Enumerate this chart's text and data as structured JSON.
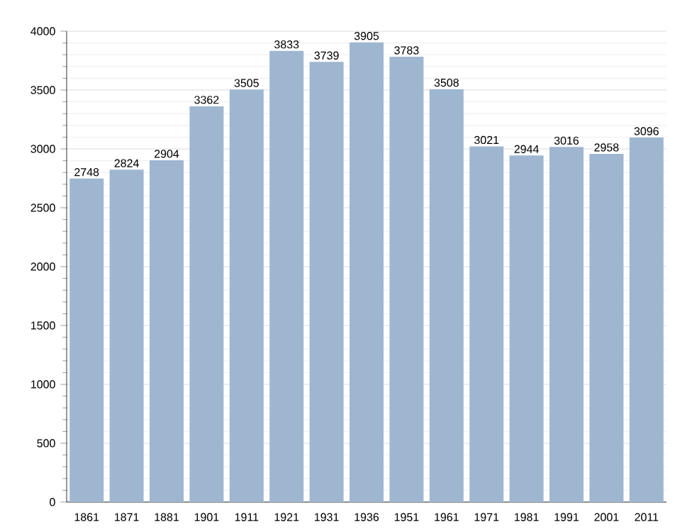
{
  "chart_data": {
    "type": "bar",
    "categories": [
      "1861",
      "1871",
      "1881",
      "1901",
      "1911",
      "1921",
      "1931",
      "1936",
      "1951",
      "1961",
      "1971",
      "1981",
      "1991",
      "2001",
      "2011"
    ],
    "values": [
      2748,
      2824,
      2904,
      3362,
      3505,
      3833,
      3739,
      3905,
      3783,
      3508,
      3021,
      2944,
      3016,
      2958,
      3096
    ],
    "color": "#9fb6d1",
    "ylim": [
      0,
      4000
    ],
    "yticks": [
      0,
      500,
      1000,
      1500,
      2000,
      2500,
      3000,
      3500,
      4000
    ],
    "grid": "y",
    "data_labels": true
  }
}
